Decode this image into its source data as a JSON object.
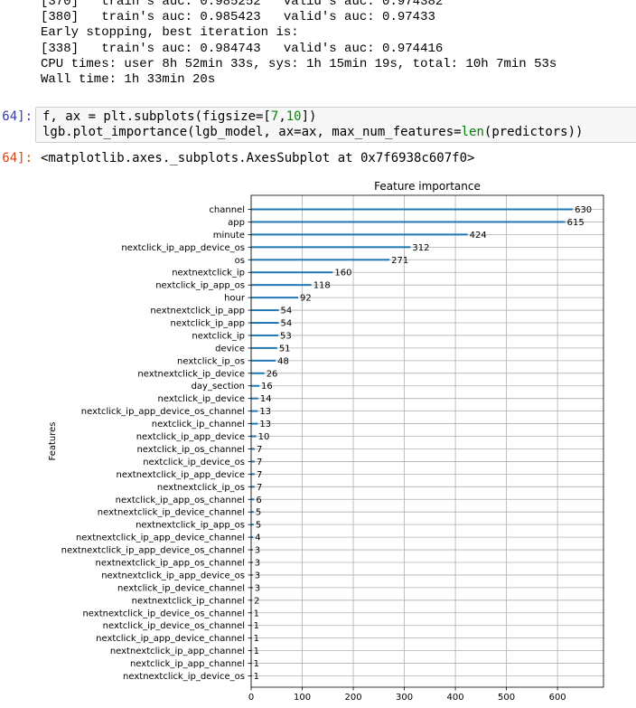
{
  "log_lines": [
    "[370]   train's auc: 0.985252   valid's auc: 0.974382",
    "[380]   train's auc: 0.985423   valid's auc: 0.97433",
    "Early stopping, best iteration is:",
    "[338]   train's auc: 0.984743   valid's auc: 0.974416",
    "CPU times: user 8h 52min 33s, sys: 1h 15min 19s, total: 10h 7min 53s",
    "Wall time: 1h 33min 20s"
  ],
  "in_prompt": "64]:",
  "out_prompt": "64]:",
  "code": {
    "line1": {
      "a": "f, ax = plt.subplots(figsize=[",
      "n1": "7",
      "b": ",",
      "n2": "10",
      "c": "])"
    },
    "line2": {
      "a": "lgb.plot_importance(lgb_model, ax=ax, max_num_features=",
      "fn": "len",
      "b": "(predictors))"
    }
  },
  "output_text": "<matplotlib.axes._subplots.AxesSubplot at 0x7f6938c607f0>",
  "chart_data": {
    "type": "bar",
    "orientation": "horizontal",
    "title": "Feature importance",
    "xlabel": "",
    "ylabel": "Features",
    "xlim": [
      0,
      690
    ],
    "xticks": [
      0,
      100,
      200,
      300,
      400,
      500,
      600
    ],
    "grid": true,
    "bar_color": "#1f77b4",
    "categories": [
      "channel",
      "app",
      "minute",
      "nextclick_ip_app_device_os",
      "os",
      "nextnextclick_ip",
      "nextclick_ip_app_os",
      "hour",
      "nextnextclick_ip_app",
      "nextclick_ip_app",
      "nextclick_ip",
      "device",
      "nextclick_ip_os",
      "nextnextclick_ip_device",
      "day_section",
      "nextclick_ip_device",
      "nextclick_ip_app_device_os_channel",
      "nextclick_ip_channel",
      "nextclick_ip_app_device",
      "nextclick_ip_os_channel",
      "nextclick_ip_device_os",
      "nextnextclick_ip_app_device",
      "nextnextclick_ip_os",
      "nextclick_ip_app_os_channel",
      "nextnextclick_ip_device_channel",
      "nextnextclick_ip_app_os",
      "nextnextclick_ip_app_device_channel",
      "nextnextclick_ip_app_device_os_channel",
      "nextnextclick_ip_app_os_channel",
      "nextnextclick_ip_app_device_os",
      "nextclick_ip_device_channel",
      "nextnextclick_ip_channel",
      "nextnextclick_ip_device_os_channel",
      "nextclick_ip_device_os_channel",
      "nextclick_ip_app_device_channel",
      "nextnextclick_ip_app_channel",
      "nextclick_ip_app_channel",
      "nextnextclick_ip_device_os"
    ],
    "values": [
      630,
      615,
      424,
      312,
      271,
      160,
      118,
      92,
      54,
      54,
      53,
      51,
      48,
      26,
      16,
      14,
      13,
      13,
      10,
      7,
      7,
      7,
      7,
      6,
      5,
      5,
      4,
      3,
      3,
      3,
      3,
      2,
      1,
      1,
      1,
      1,
      1,
      1
    ]
  }
}
